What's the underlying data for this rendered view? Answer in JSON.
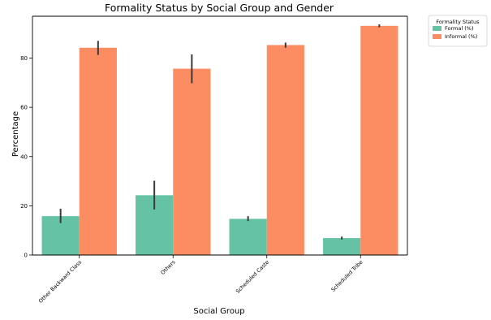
{
  "chart_data": {
    "type": "bar",
    "title": "Formality Status by Social Group and Gender",
    "xlabel": "Social Group",
    "ylabel": "Percentage",
    "categories": [
      "Other Backward Class",
      "Others",
      "Scheduled Caste",
      "Scheduled Tribe"
    ],
    "ylim": [
      0,
      97
    ],
    "yticks": [
      0,
      20,
      40,
      60,
      80
    ],
    "grid": false,
    "legend": {
      "title": "Formality Status",
      "placement": "outside-top-right"
    },
    "series": [
      {
        "name": "Formal (%)",
        "color": "#66c2a5",
        "values": [
          15.8,
          24.3,
          14.7,
          6.9
        ],
        "error_low": [
          13.0,
          18.5,
          13.8,
          6.3
        ],
        "error_high": [
          18.8,
          30.2,
          15.8,
          7.5
        ]
      },
      {
        "name": "Informal (%)",
        "color": "#fc8d62",
        "values": [
          84.2,
          75.7,
          85.3,
          93.1
        ],
        "error_low": [
          81.3,
          69.8,
          84.2,
          92.5
        ],
        "error_high": [
          87.0,
          81.5,
          86.3,
          93.7
        ]
      }
    ]
  }
}
